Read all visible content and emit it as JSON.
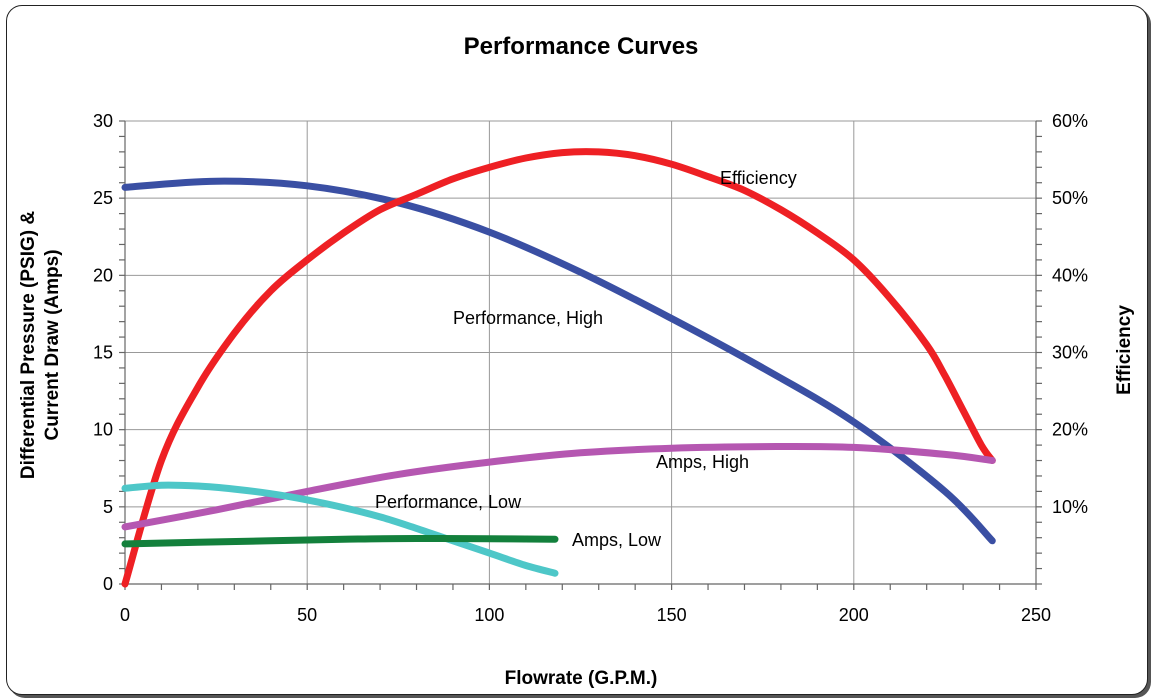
{
  "chart_data": {
    "type": "line",
    "title": "Performance Curves",
    "xlabel": "Flowrate (G.P.M.)",
    "ylabel": "Differential Pressure (PSIG) & Current Draw (Amps)",
    "ylabel_lines": [
      "Differential Pressure (PSIG) &",
      "Current Draw (Amps)"
    ],
    "y2label": "Efficiency",
    "xlim": [
      0,
      250
    ],
    "ylim": [
      0,
      30
    ],
    "y2lim": [
      0,
      60
    ],
    "x_ticks": [
      "0",
      "50",
      "100",
      "150",
      "200",
      "250"
    ],
    "y_ticks": [
      "0",
      "5",
      "10",
      "15",
      "20",
      "25",
      "30"
    ],
    "y2_ticks": [
      "10%",
      "20%",
      "30%",
      "40%",
      "50%",
      "60%"
    ],
    "grid": true,
    "series": [
      {
        "name": "Efficiency",
        "axis": "right",
        "color": "#ee2024",
        "x": [
          0,
          10,
          20,
          30,
          40,
          50,
          60,
          70,
          80,
          90,
          100,
          110,
          120,
          130,
          140,
          150,
          160,
          170,
          180,
          190,
          200,
          210,
          220,
          225,
          230,
          235,
          238
        ],
        "y": [
          0,
          16,
          25.5,
          32.5,
          38,
          42,
          45.5,
          48.5,
          50.5,
          52.5,
          54,
          55.2,
          55.9,
          56,
          55.5,
          54.4,
          52.8,
          51,
          48.5,
          45.5,
          42,
          37,
          31,
          27,
          22.5,
          18,
          16
        ]
      },
      {
        "name": "Performance, High",
        "axis": "left",
        "color": "#3a4fa3",
        "x": [
          0,
          25,
          50,
          75,
          100,
          125,
          150,
          175,
          200,
          225,
          238
        ],
        "y": [
          25.7,
          26.1,
          25.8,
          24.7,
          22.8,
          20.2,
          17.2,
          14,
          10.5,
          6,
          2.8
        ]
      },
      {
        "name": "Amps, High",
        "axis": "left",
        "color": "#b557b1",
        "x": [
          0,
          25,
          50,
          75,
          100,
          125,
          150,
          175,
          200,
          225,
          238
        ],
        "y": [
          3.7,
          4.8,
          6,
          7.1,
          7.9,
          8.5,
          8.8,
          8.9,
          8.85,
          8.4,
          8
        ]
      },
      {
        "name": "Performance, Low",
        "axis": "left",
        "color": "#4ec7c8",
        "x": [
          0,
          10,
          20,
          30,
          40,
          50,
          60,
          70,
          80,
          90,
          100,
          110,
          118
        ],
        "y": [
          6.2,
          6.4,
          6.35,
          6.15,
          5.85,
          5.45,
          4.95,
          4.35,
          3.6,
          2.8,
          2,
          1.2,
          0.7
        ]
      },
      {
        "name": "Amps, Low",
        "axis": "left",
        "color": "#13803c",
        "x": [
          0,
          20,
          40,
          60,
          80,
          100,
          118
        ],
        "y": [
          2.6,
          2.7,
          2.8,
          2.9,
          2.95,
          2.93,
          2.9
        ]
      }
    ]
  }
}
